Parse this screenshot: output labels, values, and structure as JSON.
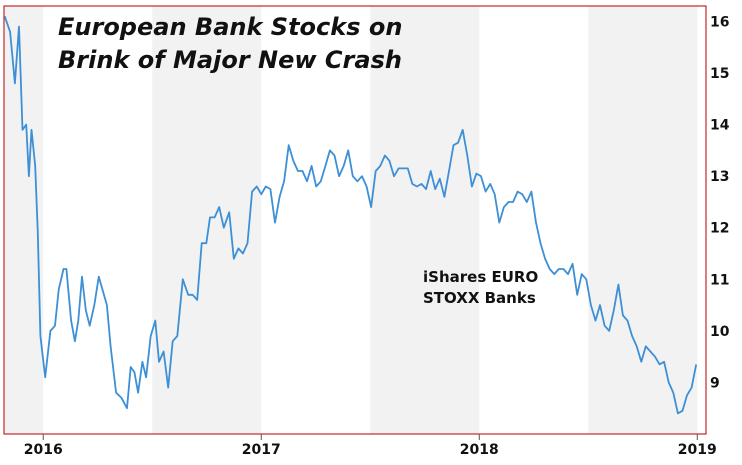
{
  "chart_data": {
    "type": "line",
    "title_lines": [
      "European Bank Stocks on",
      "Brink of Major New Crash"
    ],
    "annotation_lines": [
      "iShares EURO",
      "STOXX Banks"
    ],
    "xlabel": "",
    "ylabel": "",
    "x_tick_labels": [
      "2016",
      "2017",
      "2018",
      "2019"
    ],
    "x_tick_years": [
      2016.0,
      2017.0,
      2018.0,
      2019.0
    ],
    "xlim": [
      2015.82,
      2019.04
    ],
    "ylim": [
      8.0,
      16.3
    ],
    "y_ticks": [
      9,
      10,
      11,
      12,
      13,
      14,
      15,
      16
    ],
    "y_tick_labels": [
      "9",
      "10",
      "11",
      "12",
      "13",
      "14",
      "15",
      "16"
    ],
    "grid": "alternating vertical bands",
    "colors": {
      "line": "#3d8fd6",
      "frame": "#c62828",
      "band": "#f2f2f2",
      "text": "#111111"
    },
    "series": [
      {
        "x": [
          2015.823,
          2015.848,
          2015.87,
          2015.889,
          2015.905,
          2015.922,
          2015.934,
          2015.946,
          2015.963,
          2015.975,
          2015.987,
          2016.009,
          2016.033,
          2016.054,
          2016.071,
          2016.093,
          2016.106,
          2016.128,
          2016.145,
          2016.161,
          2016.178,
          2016.195,
          2016.213,
          2016.234,
          2016.255,
          2016.272,
          2016.292,
          2016.309,
          2016.334,
          2016.359,
          2016.384,
          2016.401,
          2016.418,
          2016.435,
          2016.455,
          2016.472,
          2016.493,
          2016.514,
          2016.531,
          2016.552,
          2016.573,
          2016.594,
          2016.615,
          2016.64,
          2016.665,
          2016.685,
          2016.706,
          2016.727,
          2016.748,
          2016.765,
          2016.786,
          2016.807,
          2016.828,
          2016.853,
          2016.874,
          2016.895,
          2016.916,
          2016.937,
          2016.958,
          2016.979,
          2017.0,
          2017.021,
          2017.042,
          2017.063,
          2017.084,
          2017.105,
          2017.126,
          2017.147,
          2017.168,
          2017.189,
          2017.21,
          2017.231,
          2017.252,
          2017.273,
          2017.294,
          2017.315,
          2017.336,
          2017.357,
          2017.378,
          2017.399,
          2017.42,
          2017.441,
          2017.462,
          2017.483,
          2017.504,
          2017.525,
          2017.546,
          2017.567,
          2017.588,
          2017.609,
          2017.63,
          2017.651,
          2017.672,
          2017.693,
          2017.714,
          2017.735,
          2017.756,
          2017.777,
          2017.798,
          2017.819,
          2017.84,
          2017.861,
          2017.882,
          2017.903,
          2017.924,
          2017.945,
          2017.966,
          2017.987,
          2018.008,
          2018.029,
          2018.05,
          2018.071,
          2018.092,
          2018.113,
          2018.134,
          2018.155,
          2018.176,
          2018.197,
          2018.218,
          2018.239,
          2018.26,
          2018.281,
          2018.302,
          2018.323,
          2018.344,
          2018.365,
          2018.386,
          2018.407,
          2018.428,
          2018.449,
          2018.47,
          2018.491,
          2018.512,
          2018.533,
          2018.554,
          2018.575,
          2018.596,
          2018.617,
          2018.638,
          2018.659,
          2018.68,
          2018.701,
          2018.722,
          2018.743,
          2018.764,
          2018.785,
          2018.806,
          2018.827,
          2018.848,
          2018.869,
          2018.89,
          2018.911,
          2018.932,
          2018.953,
          2018.974,
          2018.995
        ],
        "values": [
          16.1,
          15.8,
          14.8,
          15.9,
          13.9,
          14.0,
          13.0,
          13.9,
          13.2,
          11.9,
          9.9,
          9.1,
          10.0,
          10.1,
          10.8,
          11.2,
          11.2,
          10.2,
          9.8,
          10.2,
          11.05,
          10.4,
          10.1,
          10.5,
          11.05,
          10.8,
          10.5,
          9.7,
          8.8,
          8.7,
          8.5,
          9.3,
          9.2,
          8.8,
          9.4,
          9.1,
          9.9,
          10.2,
          9.4,
          9.6,
          8.9,
          9.8,
          9.9,
          11.0,
          10.7,
          10.7,
          10.6,
          11.7,
          11.7,
          12.2,
          12.2,
          12.4,
          12.0,
          12.3,
          11.4,
          11.6,
          11.5,
          11.7,
          12.7,
          12.8,
          12.65,
          12.8,
          12.75,
          12.1,
          12.6,
          12.9,
          13.6,
          13.3,
          13.1,
          13.1,
          12.9,
          13.2,
          12.8,
          12.9,
          13.2,
          13.5,
          13.4,
          13.0,
          13.2,
          13.5,
          13.0,
          12.9,
          13.0,
          12.8,
          12.4,
          13.1,
          13.2,
          13.4,
          13.3,
          13.0,
          13.15,
          13.15,
          13.15,
          12.85,
          12.8,
          12.85,
          12.75,
          13.1,
          12.75,
          12.95,
          12.6,
          13.1,
          13.6,
          13.65,
          13.9,
          13.4,
          12.8,
          13.05,
          13.0,
          12.7,
          12.85,
          12.65,
          12.1,
          12.4,
          12.5,
          12.5,
          12.7,
          12.65,
          12.5,
          12.7,
          12.1,
          11.7,
          11.4,
          11.2,
          11.1,
          11.2,
          11.2,
          11.1,
          11.3,
          10.7,
          11.1,
          11.0,
          10.5,
          10.2,
          10.5,
          10.1,
          10.0,
          10.4,
          10.9,
          10.3,
          10.2,
          9.9,
          9.7,
          9.4,
          9.7,
          9.6,
          9.5,
          9.35,
          9.4,
          9.0,
          8.8,
          8.4,
          8.45,
          8.75,
          8.9,
          9.35
        ]
      }
    ]
  }
}
